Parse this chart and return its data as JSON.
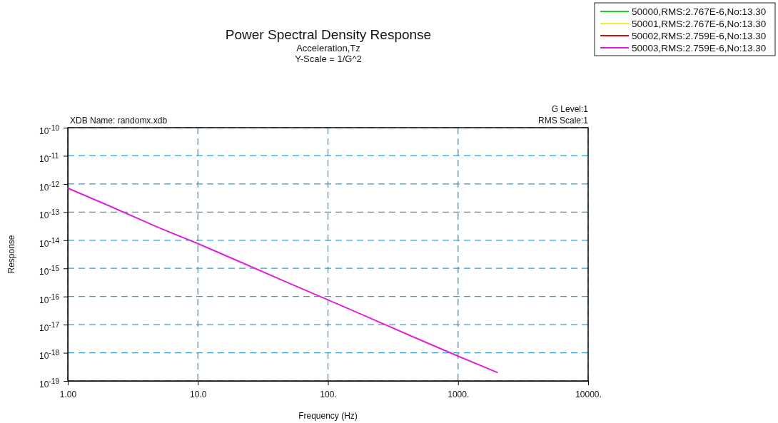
{
  "chart_data": {
    "type": "line",
    "title": "Power Spectral Density Response",
    "subtitle": "Acceleration,Tz\nY-Scale = 1/G^2",
    "xlabel": "Frequency (Hz)",
    "ylabel": "Response",
    "annotations": [
      "XDB Name: randomx.xdb",
      "G Level:1",
      "RMS Scale:1"
    ],
    "log": "xy",
    "grid": true,
    "legend": "top right",
    "line_style": "solid",
    "marker": "none",
    "xlim": [
      1,
      10000
    ],
    "xticks": [
      {
        "value": 1,
        "label": "1.00"
      },
      {
        "value": 10,
        "label": "10.0"
      },
      {
        "value": 100,
        "label": "100."
      },
      {
        "value": 1000,
        "label": "1000."
      },
      {
        "value": 10000,
        "label": "10000."
      }
    ],
    "ylim": [
      1e-19,
      1e-10
    ],
    "yticks": [
      {
        "value": 1e-10,
        "label": "10$^{-10}$"
      },
      {
        "value": 1e-11,
        "label": "10$^{-11}$"
      },
      {
        "value": 1e-12,
        "label": "10$^{-12}$"
      },
      {
        "value": 1e-13,
        "label": "10$^{-13}$"
      },
      {
        "value": 1e-14,
        "label": "10$^{-14}$"
      },
      {
        "value": 1e-15,
        "label": "10$^{-15}$"
      },
      {
        "value": 1e-16,
        "label": "10$^{-16}$"
      },
      {
        "value": 1e-17,
        "label": "10$^{-17}$"
      },
      {
        "value": 1e-18,
        "label": "10$^{-18}$"
      },
      {
        "value": 1e-19,
        "label": "10$^{-19}$"
      }
    ],
    "x": [
      1,
      2,
      5,
      10,
      20,
      50,
      100,
      200,
      500,
      1000,
      2000
    ],
    "series": [
      {
        "name": "50000,RMS:2.767E-6,No:13.30",
        "color": "#22cc22",
        "values": [
          null,
          null,
          null,
          null,
          null,
          null,
          null,
          null,
          null,
          null,
          null
        ]
      },
      {
        "name": "50001,RMS:2.767E-6,No:13.30",
        "color": "#f0f030",
        "values": [
          null,
          null,
          null,
          null,
          null,
          null,
          null,
          null,
          null,
          null,
          null
        ]
      },
      {
        "name": "50002,RMS:2.759E-6,No:13.30",
        "color": "#cc1111",
        "values": [
          null,
          null,
          null,
          null,
          null,
          null,
          null,
          null,
          null,
          null,
          null
        ]
      },
      {
        "name": "50003,RMS:2.759E-6,No:13.30",
        "color": "#dd22dd",
        "values": [
          7.1e-13,
          1.8e-13,
          2.8e-14,
          7.6e-15,
          1.9e-15,
          3e-16,
          7.6e-17,
          1.9e-17,
          3e-18,
          7.6e-19,
          2e-19
        ]
      }
    ]
  }
}
